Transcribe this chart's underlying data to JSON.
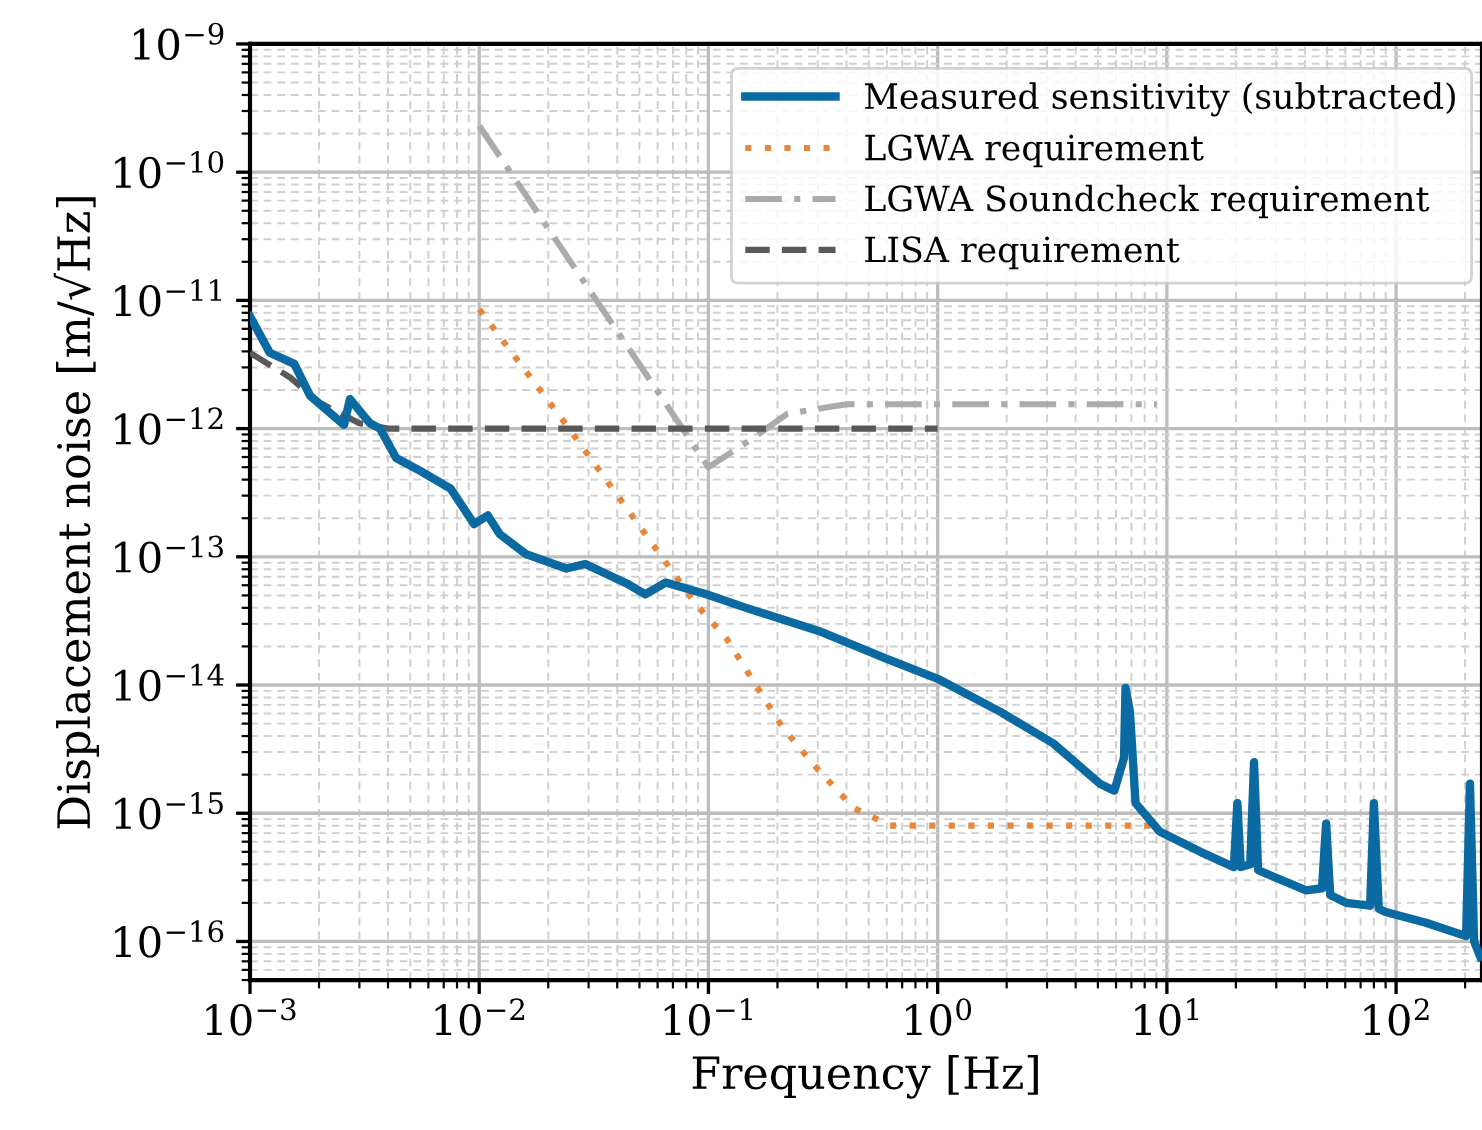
{
  "chart_data": {
    "type": "line",
    "xlabel": "Frequency [Hz]",
    "ylabel": "Displacement noise [m/√Hz]",
    "log": "xy",
    "grid": true,
    "legend": "top right",
    "xlim": [
      0.001,
      237
    ],
    "ylim": [
      5e-17,
      1e-09
    ],
    "xticks": [
      {
        "value": 0.001,
        "label": "10$^{−3}$"
      },
      {
        "value": 0.01,
        "label": "10$^{−2}$"
      },
      {
        "value": 0.1,
        "label": "10$^{−1}$"
      },
      {
        "value": 1,
        "label": "10$^{0}$"
      },
      {
        "value": 10,
        "label": "10$^{1}$"
      },
      {
        "value": 100,
        "label": "10$^{2}$"
      }
    ],
    "yticks": [
      {
        "value": 1e-16,
        "label": "10$^{−16}$"
      },
      {
        "value": 1e-15,
        "label": "10$^{−15}$"
      },
      {
        "value": 1e-14,
        "label": "10$^{−14}$"
      },
      {
        "value": 1e-13,
        "label": "10$^{−13}$"
      },
      {
        "value": 1e-12,
        "label": "10$^{−12}$"
      },
      {
        "value": 1e-11,
        "label": "10$^{−11}$"
      },
      {
        "value": 1e-10,
        "label": "10$^{−10}$"
      },
      {
        "value": 1e-09,
        "label": "10$^{−9}$"
      }
    ],
    "series": [
      {
        "name": "Measured sensitivity (subtracted)",
        "color": "#0b6aa2",
        "line_style": "solid",
        "x": [
          0.001,
          0.00122,
          0.00156,
          0.00183,
          0.00257,
          0.00273,
          0.00334,
          0.00369,
          0.00434,
          0.0055,
          0.0075,
          0.0095,
          0.0109,
          0.0123,
          0.016,
          0.024,
          0.029,
          0.044,
          0.053,
          0.065,
          0.098,
          0.146,
          0.31,
          0.6,
          1.02,
          1.87,
          3.2,
          5.1,
          5.9,
          6.5,
          6.6,
          6.9,
          7.3,
          9.3,
          14,
          19.6,
          20.3,
          21,
          23.1,
          24,
          25,
          40.5,
          47.5,
          49.5,
          51.6,
          60.5,
          77,
          80,
          84,
          90,
          135,
          202,
          210,
          219,
          233
        ],
        "values": [
          7.5e-12,
          3.9e-12,
          3.2e-12,
          1.8e-12,
          1.07e-12,
          1.7e-12,
          1.1e-12,
          1e-12,
          5.9e-13,
          4.7e-13,
          3.4e-13,
          1.8e-13,
          2.1e-13,
          1.5e-13,
          1.05e-13,
          8.1e-14,
          8.8e-14,
          6.2e-14,
          5.1e-14,
          6.3e-14,
          5.1e-14,
          4e-14,
          2.6e-14,
          1.6e-14,
          1.1e-14,
          6.2e-15,
          3.5e-15,
          1.7e-15,
          1.5e-15,
          2.7e-15,
          9.5e-15,
          6.2e-15,
          1.2e-15,
          7.2e-16,
          5e-16,
          3.8e-16,
          1.2e-15,
          3.8e-16,
          4e-16,
          2.5e-15,
          3.6e-16,
          2.5e-16,
          2.6e-16,
          8.3e-16,
          2.3e-16,
          2e-16,
          1.9e-16,
          1.2e-15,
          1.8e-16,
          1.7e-16,
          1.4e-16,
          1.1e-16,
          1.7e-15,
          1e-16,
          7.6e-17
        ]
      },
      {
        "name": "LGWA requirement",
        "color": "#e8873a",
        "line_style": "dotted",
        "x": [
          0.01,
          0.024,
          0.088,
          0.12,
          0.21,
          0.3,
          0.43,
          0.62,
          8.5
        ],
        "values": [
          8.5e-12,
          1.07e-12,
          4.3e-14,
          2.3e-14,
          4.7e-15,
          2.2e-15,
          1.1e-15,
          8e-16,
          8e-16
        ]
      },
      {
        "name": "LGWA Soundcheck requirement",
        "color": "#ababab",
        "line_style": "dashdot",
        "x": [
          0.01,
          0.1,
          0.15,
          0.22,
          0.4,
          9
        ],
        "values": [
          2.3e-10,
          5e-13,
          8e-13,
          1.3e-12,
          1.55e-12,
          1.55e-12
        ]
      },
      {
        "name": "LISA requirement",
        "color": "#595959",
        "line_style": "dashed",
        "x": [
          0.001,
          0.0015,
          0.002,
          0.003,
          0.004,
          1
        ],
        "values": [
          3.9e-12,
          2.5e-12,
          1.6e-12,
          1.1e-12,
          1e-12,
          1e-12
        ]
      }
    ]
  }
}
